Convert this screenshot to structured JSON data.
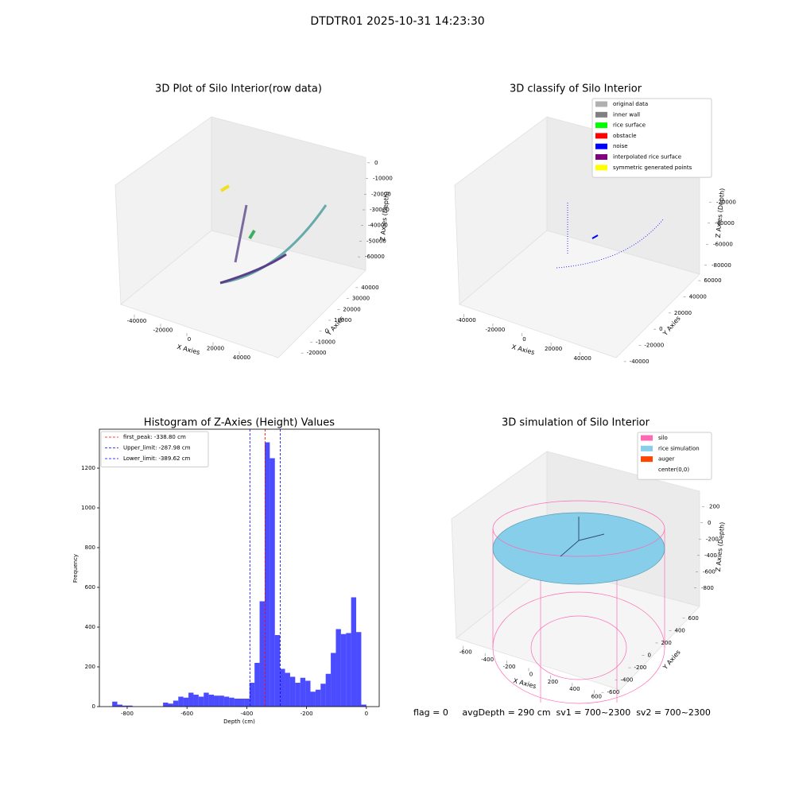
{
  "title": "DTDTR01 2025-10-31 14:23:30",
  "footer": "flag = 0     avgDepth = 290 cm  sv1 = 700~2300  sv2 = 700~2300",
  "chart_data": [
    {
      "type": "scatter3d",
      "title": "3D Plot of Silo Interior(row data)",
      "xlabel": "X Axies",
      "ylabel": "Y Axies",
      "zlabel": "Z Axies (Depth)",
      "xlim": [
        -50000,
        50000
      ],
      "ylim": [
        -25000,
        45000
      ],
      "zlim": [
        -65000,
        5000
      ],
      "xticks": [
        -40000,
        -20000,
        0,
        20000,
        40000
      ],
      "yticks": [
        -20000,
        -10000,
        0,
        10000,
        20000,
        30000,
        40000
      ],
      "zticks": [
        0,
        -10000,
        -20000,
        -30000,
        -40000,
        -50000,
        -60000
      ]
    },
    {
      "type": "scatter3d",
      "title": "3D classify of Silo Interior",
      "xlabel": "X Axies",
      "ylabel": "Y Axies",
      "zlabel": "Z Axies (Depth)",
      "xlim": [
        -50000,
        50000
      ],
      "ylim": [
        -45000,
        65000
      ],
      "zlim": [
        -90000,
        -10000
      ],
      "xticks": [
        -40000,
        -20000,
        0,
        20000,
        40000
      ],
      "yticks": [
        -40000,
        -20000,
        0,
        20000,
        40000,
        60000
      ],
      "zticks": [
        -20000,
        -40000,
        -60000,
        -80000
      ],
      "legend": [
        {
          "name": "original data",
          "color": "#b0b0b0"
        },
        {
          "name": "inner wall",
          "color": "#808080"
        },
        {
          "name": "rice surface",
          "color": "#00ff00"
        },
        {
          "name": "obstacle",
          "color": "#ff0000"
        },
        {
          "name": "noise",
          "color": "#0000ff"
        },
        {
          "name": "interpolated rice surface",
          "color": "#800080"
        },
        {
          "name": "symmetric generated points",
          "color": "#ffff00"
        }
      ]
    },
    {
      "type": "histogram",
      "title": "Histogram of Z-Axies (Height) Values",
      "xlabel": "Depth (cm)",
      "ylabel": "Frequency",
      "color": "#0000ff",
      "alpha": 0.7,
      "xlim": [
        -893,
        43
      ],
      "ylim": [
        0,
        1396
      ],
      "xticks": [
        -800,
        -600,
        -400,
        -200,
        0
      ],
      "yticks": [
        0,
        200,
        400,
        600,
        800,
        1000,
        1200
      ],
      "bins": [
        -850,
        -833,
        -816,
        -799,
        -782,
        -765,
        -748,
        -731,
        -714,
        -697,
        -680,
        -663,
        -646,
        -629,
        -612,
        -595,
        -578,
        -561,
        -544,
        -527,
        -510,
        -493,
        -476,
        -459,
        -442,
        -425,
        -408,
        -391,
        -374,
        -357,
        -340,
        -323,
        -306,
        -289,
        -272,
        -255,
        -238,
        -221,
        -204,
        -187,
        -170,
        -153,
        -136,
        -119,
        -102,
        -85,
        -68,
        -51,
        -34,
        -17,
        0
      ],
      "values": [
        25,
        10,
        5,
        5,
        0,
        0,
        0,
        0,
        0,
        0,
        20,
        15,
        30,
        50,
        45,
        70,
        60,
        50,
        70,
        60,
        55,
        55,
        50,
        45,
        40,
        40,
        40,
        120,
        220,
        530,
        1330,
        1250,
        360,
        190,
        170,
        150,
        120,
        145,
        130,
        75,
        85,
        115,
        165,
        270,
        390,
        365,
        370,
        550,
        375,
        10
      ],
      "lines": [
        {
          "label": "first_peak: -338.80 cm",
          "value": -338.8,
          "color": "#ff0000"
        },
        {
          "label": "Upper_limit: -287.98 cm",
          "value": -287.98,
          "color": "#0000ff"
        },
        {
          "label": "Lower_limit: -389.62 cm",
          "value": -389.62,
          "color": "#0000ff"
        }
      ]
    },
    {
      "type": "scatter3d",
      "title": "3D simulation of Silo Interior",
      "xlabel": "X Axies",
      "ylabel": "Y Axies",
      "zlabel": "Z Axies (Depth)",
      "xlim": [
        -700,
        700
      ],
      "ylim": [
        -700,
        700
      ],
      "zlim": [
        -900,
        300
      ],
      "xticks": [
        -600,
        -400,
        -200,
        0,
        200,
        400,
        600
      ],
      "yticks": [
        -600,
        -400,
        -200,
        0,
        200,
        400,
        600
      ],
      "zticks": [
        200,
        0,
        -200,
        -400,
        -600,
        -800
      ],
      "legend": [
        {
          "name": "silo",
          "color": "#ff69b4"
        },
        {
          "name": "rice simulation",
          "color": "#87ceeb"
        },
        {
          "name": "auger",
          "color": "#ff4500"
        },
        {
          "name": "center(0,0)",
          "color": "#ffffff"
        }
      ]
    }
  ]
}
